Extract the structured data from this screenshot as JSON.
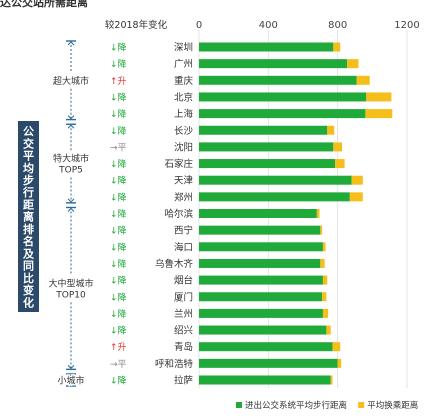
{
  "page_title": "达公交站所需距离",
  "side_title": "公交平均步行距离排名及同比变化",
  "change_header": "较2018年变化",
  "groups": [
    {
      "label": "超大城市",
      "first": 0,
      "last": 4
    },
    {
      "label": "特大城市\nTOP5",
      "first": 5,
      "last": 9
    },
    {
      "label": "大中型城市\nTOP10",
      "first": 10,
      "last": 19
    },
    {
      "label": "小城市",
      "first": 20,
      "last": 20
    }
  ],
  "change_symbols": {
    "down": "↓降",
    "up": "↑升",
    "flat": "→平"
  },
  "colors": {
    "walk": "#1faa3a",
    "transfer": "#f5be1b",
    "up": "#e0332b",
    "down": "#1faa3a",
    "flat": "#888888",
    "bracket": "#2b6a96",
    "side_box": "#2b4a6a"
  },
  "chart_data": {
    "type": "bar",
    "orientation": "horizontal",
    "stacked": true,
    "categories": [
      "深圳",
      "广州",
      "重庆",
      "北京",
      "上海",
      "长沙",
      "沈阳",
      "石家庄",
      "天津",
      "郑州",
      "哈尔滨",
      "西宁",
      "海口",
      "乌鲁木齐",
      "烟台",
      "厦门",
      "兰州",
      "绍兴",
      "青岛",
      "呼和浩特",
      "拉萨"
    ],
    "series": [
      {
        "name": "进出公交系统平均步行距离",
        "values": [
          775,
          855,
          910,
          965,
          960,
          740,
          775,
          785,
          880,
          870,
          680,
          700,
          715,
          700,
          715,
          710,
          715,
          735,
          770,
          800,
          760
        ]
      },
      {
        "name": "平均换乘距离",
        "values": [
          40,
          65,
          75,
          145,
          155,
          40,
          50,
          55,
          65,
          75,
          15,
          10,
          15,
          25,
          25,
          25,
          30,
          25,
          45,
          20,
          10
        ]
      }
    ],
    "change": [
      "down",
      "down",
      "up",
      "down",
      "down",
      "down",
      "flat",
      "down",
      "down",
      "down",
      "down",
      "down",
      "down",
      "down",
      "down",
      "down",
      "down",
      "down",
      "up",
      "flat",
      "down"
    ],
    "xlim": [
      0,
      1200
    ],
    "xticks": [
      0,
      400,
      800,
      1200
    ],
    "grid": true,
    "legend_position": "bottom-right"
  }
}
